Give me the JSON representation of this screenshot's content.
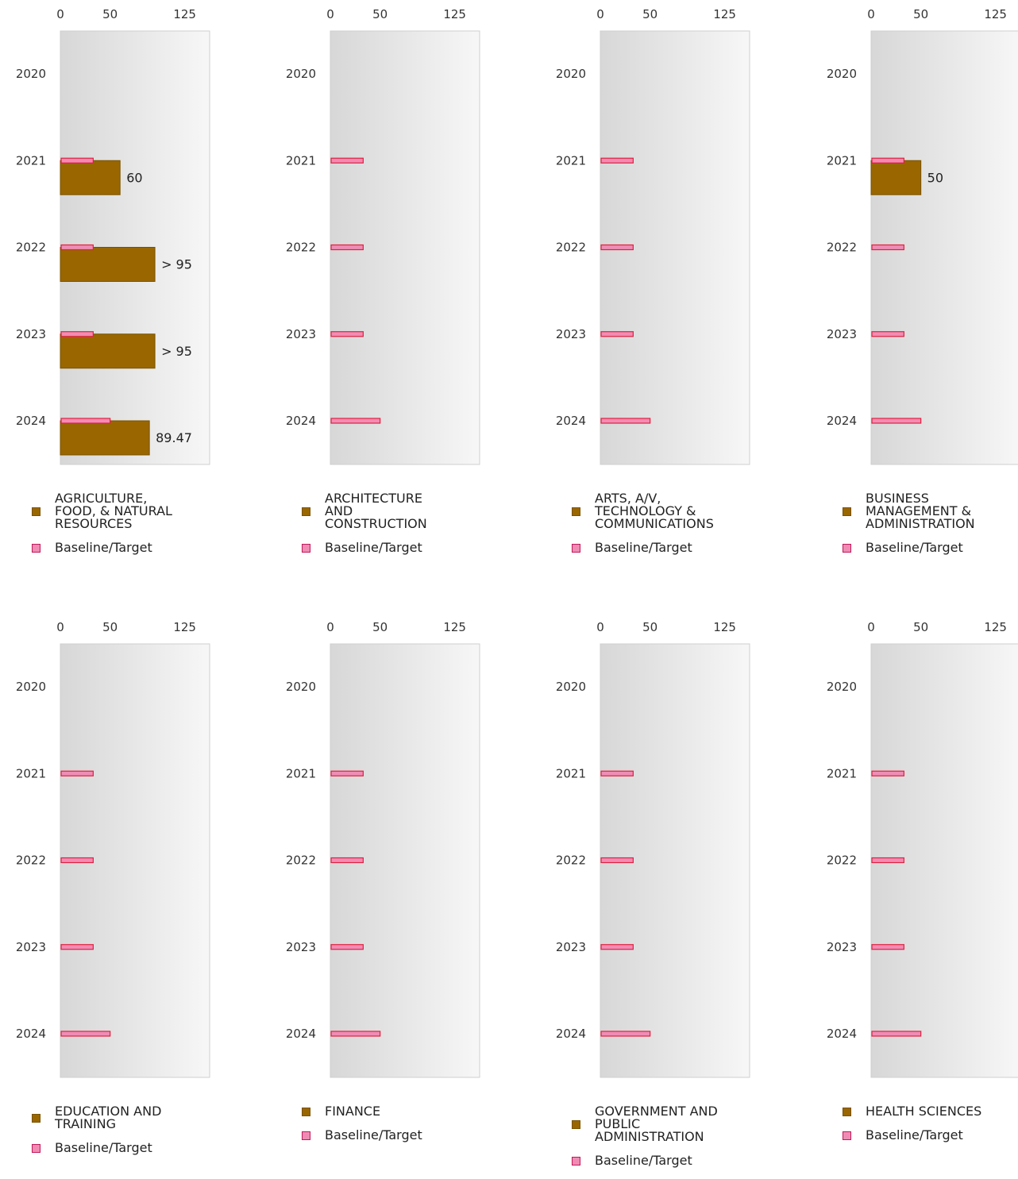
{
  "chart_data": [
    {
      "type": "bar",
      "orientation": "horizontal",
      "categories": [
        "2020",
        "2021",
        "2022",
        "2023",
        "2024"
      ],
      "x_ticks": [
        0,
        50,
        125
      ],
      "xlim": [
        0,
        150
      ],
      "series": [
        {
          "name": "AGRICULTURE, FOOD, & NATURAL RESOURCES",
          "color": "#996600",
          "values": [
            null,
            60,
            95,
            95,
            89.47
          ],
          "labels": [
            "",
            "60",
            "> 95",
            "> 95",
            "89.47"
          ]
        },
        {
          "name": "Baseline/Target",
          "color": "#f08cb4",
          "values": [
            null,
            33,
            33,
            33,
            50
          ]
        }
      ],
      "legend_lines": [
        "AGRICULTURE,",
        "FOOD, & NATURAL",
        "RESOURCES"
      ],
      "legend_position": "bottom"
    },
    {
      "type": "bar",
      "orientation": "horizontal",
      "categories": [
        "2020",
        "2021",
        "2022",
        "2023",
        "2024"
      ],
      "x_ticks": [
        0,
        50,
        125
      ],
      "xlim": [
        0,
        150
      ],
      "series": [
        {
          "name": "ARCHITECTURE AND CONSTRUCTION",
          "color": "#996600",
          "values": [
            null,
            null,
            null,
            null,
            null
          ],
          "labels": [
            "",
            "",
            "",
            "",
            ""
          ]
        },
        {
          "name": "Baseline/Target",
          "color": "#f08cb4",
          "values": [
            null,
            33,
            33,
            33,
            50
          ]
        }
      ],
      "legend_lines": [
        "ARCHITECTURE",
        "AND",
        "CONSTRUCTION"
      ],
      "legend_position": "bottom"
    },
    {
      "type": "bar",
      "orientation": "horizontal",
      "categories": [
        "2020",
        "2021",
        "2022",
        "2023",
        "2024"
      ],
      "x_ticks": [
        0,
        50,
        125
      ],
      "xlim": [
        0,
        150
      ],
      "series": [
        {
          "name": "ARTS, A/V, TECHNOLOGY & COMMUNICATIONS",
          "color": "#996600",
          "values": [
            null,
            null,
            null,
            null,
            null
          ],
          "labels": [
            "",
            "",
            "",
            "",
            ""
          ]
        },
        {
          "name": "Baseline/Target",
          "color": "#f08cb4",
          "values": [
            null,
            33,
            33,
            33,
            50
          ]
        }
      ],
      "legend_lines": [
        "ARTS, A/V,",
        "TECHNOLOGY &",
        "COMMUNICATIONS"
      ],
      "legend_position": "bottom"
    },
    {
      "type": "bar",
      "orientation": "horizontal",
      "categories": [
        "2020",
        "2021",
        "2022",
        "2023",
        "2024"
      ],
      "x_ticks": [
        0,
        50,
        125
      ],
      "xlim": [
        0,
        150
      ],
      "series": [
        {
          "name": "BUSINESS MANAGEMENT & ADMINISTRATION",
          "color": "#996600",
          "values": [
            null,
            50,
            null,
            null,
            null
          ],
          "labels": [
            "",
            "50",
            "",
            "",
            ""
          ]
        },
        {
          "name": "Baseline/Target",
          "color": "#f08cb4",
          "values": [
            null,
            33,
            33,
            33,
            50
          ]
        }
      ],
      "legend_lines": [
        "BUSINESS",
        "MANAGEMENT &",
        "ADMINISTRATION"
      ],
      "legend_position": "bottom"
    },
    {
      "type": "bar",
      "orientation": "horizontal",
      "categories": [
        "2020",
        "2021",
        "2022",
        "2023",
        "2024"
      ],
      "x_ticks": [
        0,
        50,
        125
      ],
      "xlim": [
        0,
        150
      ],
      "series": [
        {
          "name": "EDUCATION AND TRAINING",
          "color": "#996600",
          "values": [
            null,
            null,
            null,
            null,
            null
          ],
          "labels": [
            "",
            "",
            "",
            "",
            ""
          ]
        },
        {
          "name": "Baseline/Target",
          "color": "#f08cb4",
          "values": [
            null,
            33,
            33,
            33,
            50
          ]
        }
      ],
      "legend_lines": [
        "EDUCATION AND",
        "TRAINING"
      ],
      "legend_position": "bottom"
    },
    {
      "type": "bar",
      "orientation": "horizontal",
      "categories": [
        "2020",
        "2021",
        "2022",
        "2023",
        "2024"
      ],
      "x_ticks": [
        0,
        50,
        125
      ],
      "xlim": [
        0,
        150
      ],
      "series": [
        {
          "name": "FINANCE",
          "color": "#996600",
          "values": [
            null,
            null,
            null,
            null,
            null
          ],
          "labels": [
            "",
            "",
            "",
            "",
            ""
          ]
        },
        {
          "name": "Baseline/Target",
          "color": "#f08cb4",
          "values": [
            null,
            33,
            33,
            33,
            50
          ]
        }
      ],
      "legend_lines": [
        "FINANCE"
      ],
      "legend_position": "bottom"
    },
    {
      "type": "bar",
      "orientation": "horizontal",
      "categories": [
        "2020",
        "2021",
        "2022",
        "2023",
        "2024"
      ],
      "x_ticks": [
        0,
        50,
        125
      ],
      "xlim": [
        0,
        150
      ],
      "series": [
        {
          "name": "GOVERNMENT AND PUBLIC ADMINISTRATION",
          "color": "#996600",
          "values": [
            null,
            null,
            null,
            null,
            null
          ],
          "labels": [
            "",
            "",
            "",
            "",
            ""
          ]
        },
        {
          "name": "Baseline/Target",
          "color": "#f08cb4",
          "values": [
            null,
            33,
            33,
            33,
            50
          ]
        }
      ],
      "legend_lines": [
        "GOVERNMENT AND",
        "PUBLIC",
        "ADMINISTRATION"
      ],
      "legend_position": "bottom"
    },
    {
      "type": "bar",
      "orientation": "horizontal",
      "categories": [
        "2020",
        "2021",
        "2022",
        "2023",
        "2024"
      ],
      "x_ticks": [
        0,
        50,
        125
      ],
      "xlim": [
        0,
        150
      ],
      "series": [
        {
          "name": "HEALTH SCIENCES",
          "color": "#996600",
          "values": [
            null,
            null,
            null,
            null,
            null
          ],
          "labels": [
            "",
            "",
            "",
            "",
            ""
          ]
        },
        {
          "name": "Baseline/Target",
          "color": "#f08cb4",
          "values": [
            null,
            33,
            33,
            33,
            50
          ]
        }
      ],
      "legend_lines": [
        "HEALTH SCIENCES"
      ],
      "legend_position": "bottom"
    }
  ]
}
